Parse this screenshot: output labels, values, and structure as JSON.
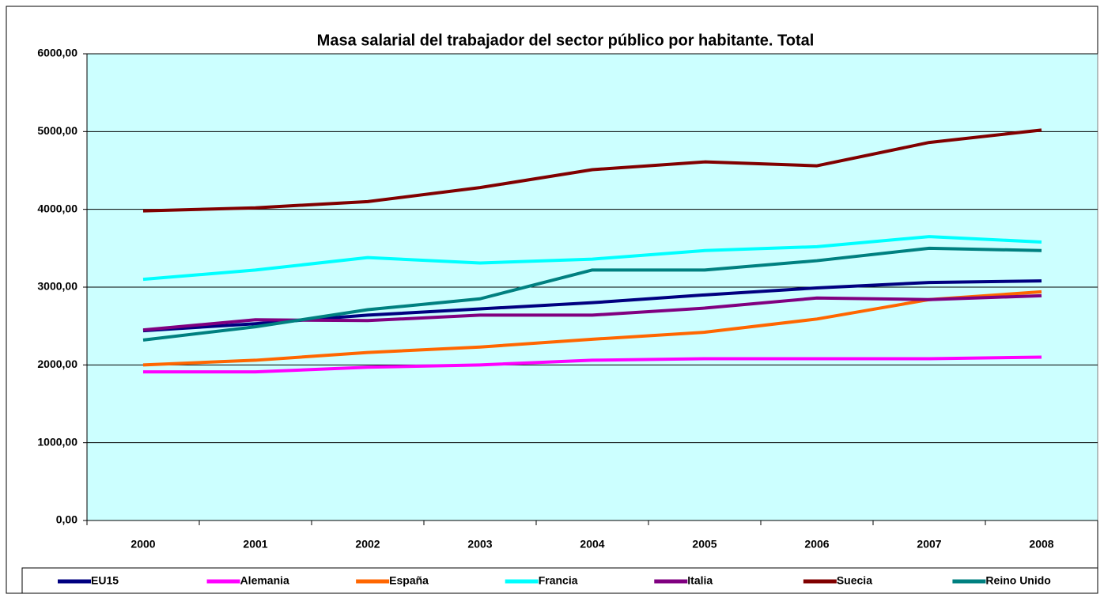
{
  "chart_data": {
    "type": "line",
    "title": "Masa salarial del trabajador del sector público por habitante. Total",
    "categories": [
      "2000",
      "2001",
      "2002",
      "2003",
      "2004",
      "2005",
      "2006",
      "2007",
      "2008"
    ],
    "series": [
      {
        "name": "EU15",
        "color": "#000080",
        "values": [
          2440,
          2530,
          2640,
          2720,
          2800,
          2900,
          2990,
          3060,
          3080
        ]
      },
      {
        "name": "Alemania",
        "color": "#ff00ff",
        "values": [
          1910,
          1910,
          1970,
          2000,
          2060,
          2080,
          2080,
          2080,
          2100
        ]
      },
      {
        "name": "España",
        "color": "#ff6600",
        "values": [
          2000,
          2060,
          2160,
          2230,
          2330,
          2420,
          2590,
          2840,
          2940
        ]
      },
      {
        "name": "Francia",
        "color": "#00ffff",
        "values": [
          3100,
          3220,
          3380,
          3310,
          3360,
          3470,
          3520,
          3650,
          3580
        ]
      },
      {
        "name": "Italia",
        "color": "#800080",
        "values": [
          2450,
          2580,
          2570,
          2640,
          2640,
          2730,
          2860,
          2840,
          2890
        ]
      },
      {
        "name": "Suecia",
        "color": "#800000",
        "values": [
          3980,
          4020,
          4100,
          4280,
          4510,
          4610,
          4560,
          4860,
          5020
        ]
      },
      {
        "name": "Reino Unido",
        "color": "#008080",
        "values": [
          2320,
          2490,
          2710,
          2850,
          3220,
          3220,
          3340,
          3500,
          3470
        ]
      }
    ],
    "ylim": [
      0,
      6000
    ],
    "yticks": [
      {
        "value": 0,
        "label": "0,00"
      },
      {
        "value": 1000,
        "label": "1000,00"
      },
      {
        "value": 2000,
        "label": "2000,00"
      },
      {
        "value": 3000,
        "label": "3000,00"
      },
      {
        "value": 4000,
        "label": "4000,00"
      },
      {
        "value": 5000,
        "label": "5000,00"
      },
      {
        "value": 6000,
        "label": "6000,00"
      }
    ],
    "grid": true,
    "plot_background": "#ccffff",
    "legend": "bottom"
  }
}
